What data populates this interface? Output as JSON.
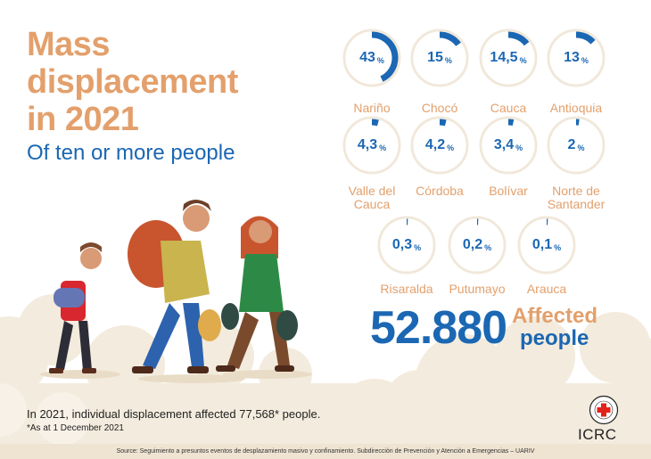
{
  "title": {
    "line1": "Mass",
    "line2": "displacement",
    "line3": "in 2021",
    "subtitle": "Of ten or more people"
  },
  "regions": [
    {
      "name": "Nariño",
      "value": "43",
      "unit": "%",
      "share": 0.43
    },
    {
      "name": "Chocó",
      "value": "15",
      "unit": "%",
      "share": 0.15
    },
    {
      "name": "Cauca",
      "value": "14,5",
      "unit": "%",
      "share": 0.145
    },
    {
      "name": "Antioquia",
      "value": "13",
      "unit": "%",
      "share": 0.13
    },
    {
      "name": "Valle del Cauca",
      "name_line1": "Valle del",
      "name_line2": "Cauca",
      "value": "4,3",
      "unit": "%",
      "share": 0.043
    },
    {
      "name": "Córdoba",
      "value": "4,2",
      "unit": "%",
      "share": 0.042
    },
    {
      "name": "Bolívar",
      "value": "3,4",
      "unit": "%",
      "share": 0.034
    },
    {
      "name": "Norte de Santander",
      "name_line1": "Norte de",
      "name_line2": "Santander",
      "value": "2",
      "unit": "%",
      "share": 0.02
    },
    {
      "name": "Risaralda",
      "value": "0,3",
      "unit": "%",
      "share": 0.003
    },
    {
      "name": "Putumayo",
      "value": "0,2",
      "unit": "%",
      "share": 0.002
    },
    {
      "name": "Arauca",
      "value": "0,1",
      "unit": "%",
      "share": 0.001
    }
  ],
  "total": {
    "number": "52.880",
    "label_line1": "Affected",
    "label_line2": "people"
  },
  "footer": {
    "main": "In 2021, individual displacement affected 77,568* people.",
    "note": "*As at 1 December 2021",
    "source": "Source: Seguimiento a presuntos eventos de desplazamiento masivo y confinamiento. Subdirección de Prevención y Atención a Emergencias – UARIV"
  },
  "logo": {
    "text": "ICRC",
    "emblem_text": "COMITÉ INTERNATIONAL GENÈVE"
  },
  "colors": {
    "accent_orange": "#e3a06c",
    "accent_blue": "#1b67b3",
    "ring_light": "#f1e8da",
    "cloud_beige": "#f3ebdd",
    "red_cross": "#e2231a"
  },
  "icons": [
    "red-cross-emblem-icon"
  ]
}
